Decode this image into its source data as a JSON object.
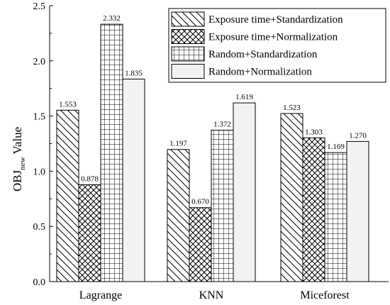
{
  "chart_data": {
    "type": "bar",
    "categories": [
      "Lagrange",
      "KNN",
      "Miceforest"
    ],
    "series": [
      {
        "name": "Exposure time+Standardization",
        "values": [
          1.553,
          1.197,
          1.523
        ],
        "labels": [
          "1.553",
          "1.197",
          "1.523"
        ],
        "pattern": "diagonal"
      },
      {
        "name": "Exposure time+Normalization",
        "values": [
          0.878,
          0.67,
          1.303
        ],
        "labels": [
          "0.878",
          "0.670",
          "1.303"
        ],
        "pattern": "crosshatch"
      },
      {
        "name": "Random+Standardization",
        "values": [
          2.332,
          1.372,
          1.169
        ],
        "labels": [
          "2.332",
          "1.372",
          "1.169"
        ],
        "pattern": "grid"
      },
      {
        "name": "Random+Normalization",
        "values": [
          1.835,
          1.619,
          1.27
        ],
        "labels": [
          "1.835",
          "1.619",
          "1.270"
        ],
        "pattern": "solid-light"
      }
    ],
    "title": "",
    "xlabel": "",
    "ylabel_main": "OBJ",
    "ylabel_sub": "new",
    "ylabel_tail": " Value",
    "ylim": [
      0,
      2.5
    ],
    "yticks": [
      "0.0",
      "0.5",
      "1.0",
      "1.5",
      "2.0",
      "2.5"
    ],
    "legend_position": "top-right",
    "grid": false,
    "colors": {
      "stroke": "#000000",
      "light_fill": "#f2f2f2"
    }
  }
}
